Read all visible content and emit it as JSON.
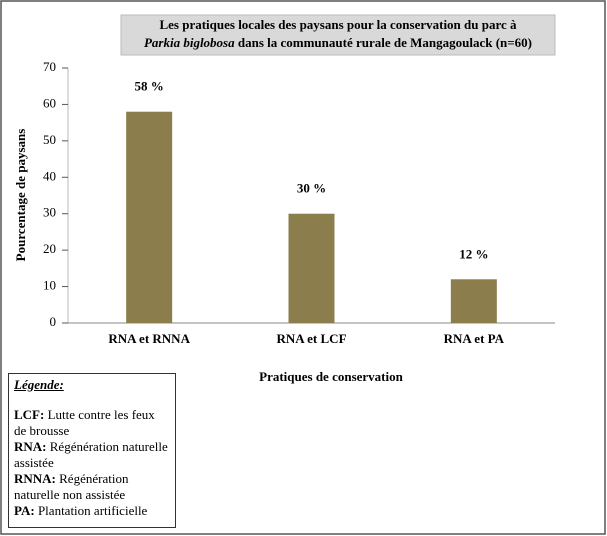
{
  "chart_data": {
    "type": "bar",
    "title_parts": [
      "Les pratiques locales des paysans pour la conservation du parc à",
      "Parkia biglobosa",
      "dans la communauté rurale de Mangagoulack (n=60)"
    ],
    "categories": [
      "RNA et RNNA",
      "RNA et LCF",
      "RNA et PA"
    ],
    "values": [
      58,
      30,
      12
    ],
    "value_labels": [
      "58 %",
      "30 %",
      "12 %"
    ],
    "color": "#8c7e4c",
    "ylim": [
      0,
      70
    ],
    "yticks": [
      0,
      10,
      20,
      30,
      40,
      50,
      60,
      70
    ],
    "xlabel": "Pratiques de conservation",
    "ylabel": "Pourcentage de paysans",
    "grid": false
  },
  "legend_box": {
    "title": "Légende:",
    "items": [
      {
        "term": "LCF:",
        "text": "Lutte contre les feux de brousse"
      },
      {
        "term": "RNA:",
        "text": "Régénération naturelle assistée"
      },
      {
        "term": "RNNA:",
        "text": "Régénération naturelle non assistée"
      },
      {
        "term": "PA:",
        "text": "Plantation artificielle"
      }
    ]
  }
}
